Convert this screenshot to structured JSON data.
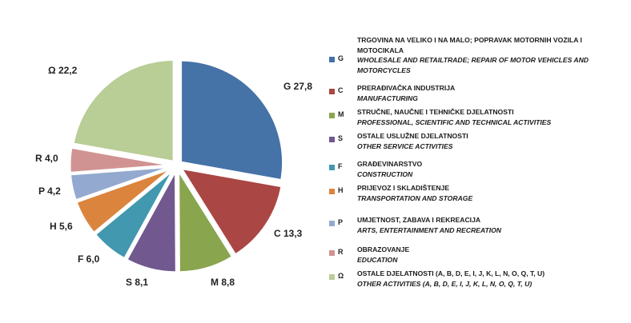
{
  "chart_data": {
    "type": "pie",
    "title": "",
    "slices": [
      {
        "code": "G",
        "value": 27.8,
        "value_label": "27,8",
        "color": "#4572A7",
        "label_local": "TRGOVINA NA VELIKO I NA MALO; POPRAVAK MOTORNIH VOZILA I MOTOCIKALA",
        "label_en": "WHOLESALE AND RETAILTRADE; REPAIR OF MOTOR VEHICLES AND MOTORCYCLES"
      },
      {
        "code": "C",
        "value": 13.3,
        "value_label": "13,3",
        "color": "#AA4643",
        "label_local": "PRERAĐIVAČKA INDUSTRIJA",
        "label_en": "MANUFACTURING"
      },
      {
        "code": "M",
        "value": 8.8,
        "value_label": "8,8",
        "color": "#89A54E",
        "label_local": "STRUČNE, NAUČNE I TEHNIČKE DJELATNOSTI",
        "label_en": "PROFESSIONAL, SCIENTIFIC AND TECHNICAL ACTIVITIES"
      },
      {
        "code": "S",
        "value": 8.1,
        "value_label": "8,1",
        "color": "#71588F",
        "label_local": "OSTALE USLUŽNE DJELATNOSTI",
        "label_en": "OTHER SERVICE ACTIVITIES"
      },
      {
        "code": "F",
        "value": 6.0,
        "value_label": "6,0",
        "color": "#4198AF",
        "label_local": "GRAĐEVINARSTVO",
        "label_en": "CONSTRUCTION"
      },
      {
        "code": "H",
        "value": 5.6,
        "value_label": "5,6",
        "color": "#DB843D",
        "label_local": "PRIJEVOZ I SKLADIŠTENJE",
        "label_en": "TRANSPORTATION AND STORAGE"
      },
      {
        "code": "P",
        "value": 4.2,
        "value_label": "4,2",
        "color": "#93A9CF",
        "label_local": "UMJETNOST, ZABAVA I REKREACIJA",
        "label_en": "ARTS, ENTERTAINMENT AND RECREATION"
      },
      {
        "code": "R",
        "value": 4.0,
        "value_label": "4,0",
        "color": "#D19392",
        "label_local": "OBRAZOVANJE",
        "label_en": "EDUCATION"
      },
      {
        "code": "Ω",
        "value": 22.2,
        "value_label": "22,2",
        "color": "#B9CD96",
        "label_local": "OSTALE DJELATNOSTI (A, B, D, E, I, J, K, L, N, O, Q, T, U)",
        "label_en": "OTHER ACTIVITIES (A, B, D, E, I, J, K, L, N, O, Q, T, U)"
      }
    ]
  }
}
